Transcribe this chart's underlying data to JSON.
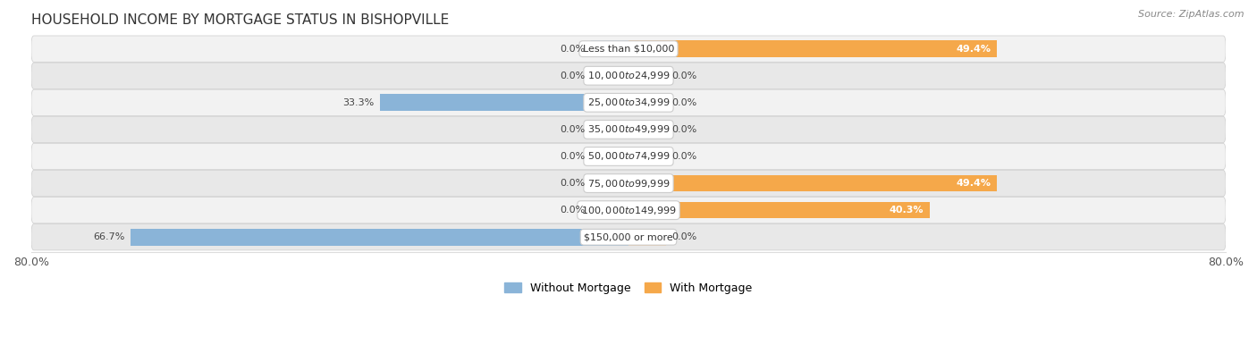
{
  "title": "HOUSEHOLD INCOME BY MORTGAGE STATUS IN BISHOPVILLE",
  "source": "Source: ZipAtlas.com",
  "categories": [
    "Less than $10,000",
    "$10,000 to $24,999",
    "$25,000 to $34,999",
    "$35,000 to $49,999",
    "$50,000 to $74,999",
    "$75,000 to $99,999",
    "$100,000 to $149,999",
    "$150,000 or more"
  ],
  "without_mortgage": [
    0.0,
    0.0,
    33.3,
    0.0,
    0.0,
    0.0,
    0.0,
    66.7
  ],
  "with_mortgage": [
    49.4,
    0.0,
    0.0,
    0.0,
    0.0,
    49.4,
    40.3,
    0.0
  ],
  "color_without": "#8ab4d8",
  "color_with": "#f5a84a",
  "color_without_zero": "#b8d4ea",
  "color_with_zero": "#f8d09a",
  "xlim": [
    -80,
    80
  ],
  "background_color": "#ffffff",
  "row_bg_even": "#f2f2f2",
  "row_bg_odd": "#e8e8e8",
  "title_fontsize": 11,
  "source_fontsize": 8,
  "label_fontsize": 8,
  "category_fontsize": 8,
  "legend_labels": [
    "Without Mortgage",
    "With Mortgage"
  ],
  "bar_height": 0.62,
  "zero_stub": 5.0,
  "row_padding": 0.48
}
